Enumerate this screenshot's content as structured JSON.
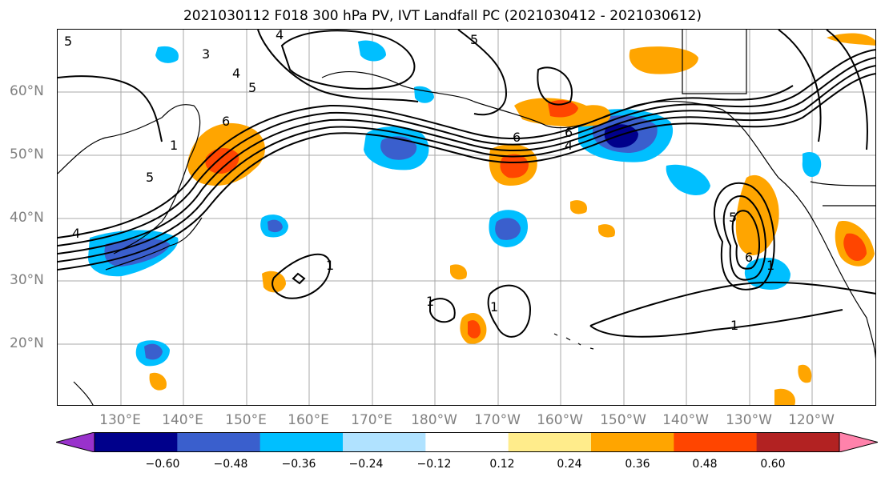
{
  "title": "2021030112 F018 300 hPa PV, IVT Landfall PC (2021030412 - 2021030612)",
  "lon_labels": [
    "130°E",
    "140°E",
    "150°E",
    "160°E",
    "170°E",
    "180°W",
    "170°W",
    "160°W",
    "150°W",
    "140°W",
    "130°W",
    "120°W"
  ],
  "lat_labels": [
    "60°N",
    "50°N",
    "40°N",
    "30°N",
    "20°N"
  ],
  "colorbar": {
    "ticks": [
      "−0.60",
      "−0.48",
      "−0.36",
      "−0.24",
      "−0.12",
      "0.12",
      "0.24",
      "0.36",
      "0.48",
      "0.60"
    ],
    "colors": [
      "#9932cc",
      "#00008b",
      "#3a5fcd",
      "#00bfff",
      "#b0e2ff",
      "#ffffff",
      "#ffec8b",
      "#ffa500",
      "#ff4500",
      "#b22222",
      "#ff82ab"
    ]
  },
  "contour_labels": [
    "5",
    "4",
    "3",
    "4",
    "5",
    "6",
    "5",
    "6",
    "6",
    "4",
    "1",
    "5",
    "4",
    "1",
    "1",
    "1",
    "1",
    "1",
    "5",
    "6"
  ]
}
